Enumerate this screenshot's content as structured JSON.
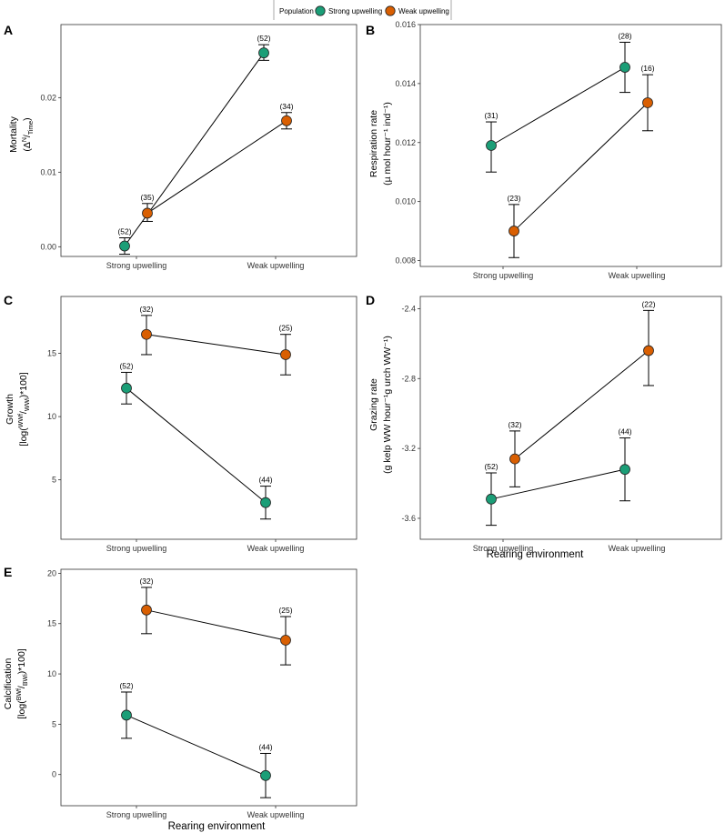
{
  "legend": {
    "title": "Population",
    "entries": [
      {
        "label": "Strong upwelling",
        "color": "#1b9e77"
      },
      {
        "label": "Weak upwelling",
        "color": "#d95f02"
      }
    ]
  },
  "chart_data": [
    {
      "panel": "A",
      "type": "line",
      "categories": [
        "Strong upwelling",
        "Weak upwelling"
      ],
      "xlabel": "",
      "ylabel": [
        "Mortality",
        "(Δ N/Time)"
      ],
      "ylim": [
        -0.0013,
        0.0298
      ],
      "yticks": [
        0.0,
        0.01,
        0.02
      ],
      "ytick_labels": [
        "0.00",
        "0.01",
        "0.02"
      ],
      "series": [
        {
          "name": "Strong upwelling",
          "values": [
            0.0001,
            0.026
          ],
          "err_low": [
            -0.001,
            0.025
          ],
          "err_high": [
            0.0012,
            0.0271
          ],
          "n_labels": [
            "(52)",
            "(52)"
          ]
        },
        {
          "name": "Weak upwelling",
          "values": [
            0.0045,
            0.0169
          ],
          "err_low": [
            0.0034,
            0.0158
          ],
          "err_high": [
            0.0058,
            0.018
          ],
          "n_labels": [
            "(35)",
            "(34)"
          ]
        }
      ]
    },
    {
      "panel": "B",
      "type": "line",
      "categories": [
        "Strong upwelling",
        "Weak upwelling"
      ],
      "xlabel": "",
      "ylabel": [
        "Respiration rate",
        "(µ mol hour⁻¹ ind⁻¹)"
      ],
      "ylim": [
        0.0078,
        0.016
      ],
      "yticks": [
        0.008,
        0.01,
        0.012,
        0.014,
        0.016
      ],
      "ytick_labels": [
        "0.008",
        "0.010",
        "0.012",
        "0.014",
        "0.016"
      ],
      "series": [
        {
          "name": "Strong upwelling",
          "values": [
            0.0119,
            0.01455
          ],
          "err_low": [
            0.011,
            0.0137
          ],
          "err_high": [
            0.0127,
            0.0154
          ],
          "n_labels": [
            "(31)",
            "(28)"
          ]
        },
        {
          "name": "Weak upwelling",
          "values": [
            0.009,
            0.01335
          ],
          "err_low": [
            0.0081,
            0.0124
          ],
          "err_high": [
            0.0099,
            0.0143
          ],
          "n_labels": [
            "(23)",
            "(16)"
          ]
        }
      ]
    },
    {
      "panel": "C",
      "type": "line",
      "categories": [
        "Strong upwelling",
        "Weak upwelling"
      ],
      "xlabel": "",
      "ylabel": [
        "Growth",
        "[log(WWf/WWi)*100]"
      ],
      "ylim": [
        0.3,
        19.5
      ],
      "yticks": [
        5,
        10,
        15
      ],
      "ytick_labels": [
        "5",
        "10",
        "15"
      ],
      "series": [
        {
          "name": "Strong upwelling",
          "values": [
            12.25,
            3.2
          ],
          "err_low": [
            11.0,
            1.9
          ],
          "err_high": [
            13.5,
            4.5
          ],
          "n_labels": [
            "(52)",
            "(44)"
          ]
        },
        {
          "name": "Weak upwelling",
          "values": [
            16.5,
            14.9
          ],
          "err_low": [
            14.9,
            13.3
          ],
          "err_high": [
            18.0,
            16.5
          ],
          "n_labels": [
            "(32)",
            "(25)"
          ]
        }
      ]
    },
    {
      "panel": "D",
      "type": "line",
      "categories": [
        "Strong upwelling",
        "Weak upwelling"
      ],
      "xlabel": "Rearing environment",
      "ylabel": [
        "Grazing rate",
        "(g kelp WW hour⁻¹g urch WW⁻¹)"
      ],
      "ylim": [
        -3.72,
        -2.33
      ],
      "yticks": [
        -3.6,
        -3.2,
        -2.8,
        -2.4
      ],
      "ytick_labels": [
        "-3.6",
        "-3.2",
        "-2.8",
        "-2.4"
      ],
      "series": [
        {
          "name": "Strong upwelling",
          "values": [
            -3.49,
            -3.32
          ],
          "err_low": [
            -3.64,
            -3.5
          ],
          "err_high": [
            -3.34,
            -3.14
          ],
          "n_labels": [
            "(52)",
            "(44)"
          ]
        },
        {
          "name": "Weak upwelling",
          "values": [
            -3.26,
            -2.64
          ],
          "err_low": [
            -3.42,
            -2.84
          ],
          "err_high": [
            -3.1,
            -2.41
          ],
          "n_labels": [
            "(32)",
            "(22)"
          ]
        }
      ]
    },
    {
      "panel": "E",
      "type": "line",
      "categories": [
        "Strong upwelling",
        "Weak upwelling"
      ],
      "xlabel": "Rearing environment",
      "ylabel": [
        "Calcification",
        "[log(BWf/BWi)*100]"
      ],
      "ylim": [
        -3.1,
        20.4
      ],
      "yticks": [
        0,
        5,
        10,
        15,
        20
      ],
      "ytick_labels": [
        "0",
        "5",
        "10",
        "15",
        "20"
      ],
      "series": [
        {
          "name": "Strong upwelling",
          "values": [
            5.9,
            -0.1
          ],
          "err_low": [
            3.6,
            -2.3
          ],
          "err_high": [
            8.2,
            2.1
          ],
          "n_labels": [
            "(52)",
            "(44)"
          ]
        },
        {
          "name": "Weak upwelling",
          "values": [
            16.35,
            13.35
          ],
          "err_low": [
            14.0,
            10.9
          ],
          "err_high": [
            18.6,
            15.7
          ],
          "n_labels": [
            "(32)",
            "(25)"
          ]
        }
      ]
    }
  ]
}
